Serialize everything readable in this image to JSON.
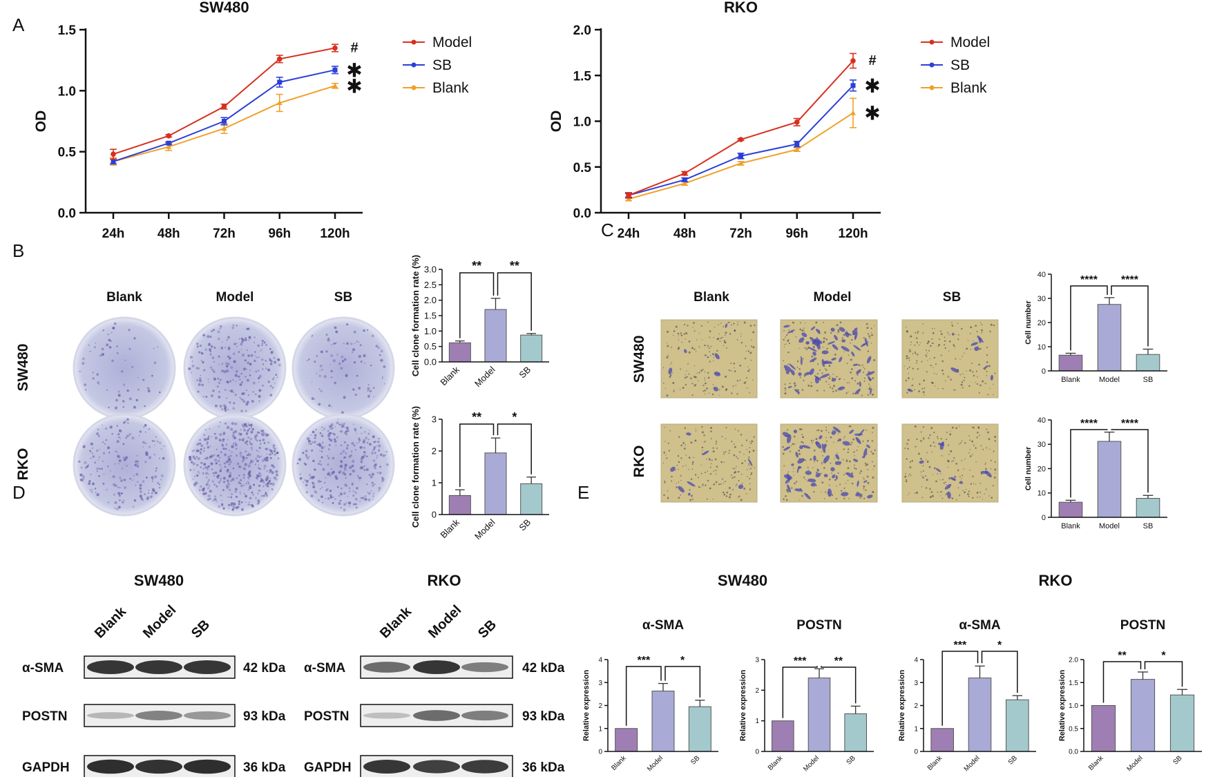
{
  "panel_letters": [
    "A",
    "B",
    "C",
    "D",
    "E"
  ],
  "colors": {
    "model": "#d7301f",
    "sb": "#2c3fd8",
    "blank": "#f0a02a",
    "bar_blank": "#9f7fb3",
    "bar_model": "#a9aad6",
    "bar_sb": "#a3c9cd",
    "plate_bg": "#c9cde2",
    "field_bg": "#cfc08c"
  },
  "groups": [
    "Blank",
    "Model",
    "SB"
  ],
  "cells": [
    "SW480",
    "RKO"
  ],
  "chart_data": [
    {
      "id": "A-SW480",
      "type": "line",
      "title": "SW480",
      "xlabel": "",
      "ylabel": "OD",
      "categories": [
        "24h",
        "48h",
        "72h",
        "96h",
        "120h"
      ],
      "ylim": [
        0,
        1.5
      ],
      "yticks": [
        0.0,
        0.5,
        1.0,
        1.5
      ],
      "ytick_labels": [
        "0.0",
        "0.5",
        "1.0",
        "1.5"
      ],
      "series": [
        {
          "name": "Model",
          "color": "#d7301f",
          "values": [
            0.48,
            0.63,
            0.87,
            1.26,
            1.35
          ],
          "err": [
            0.04,
            0.01,
            0.02,
            0.03,
            0.03
          ]
        },
        {
          "name": "SB",
          "color": "#2c3fd8",
          "values": [
            0.42,
            0.57,
            0.75,
            1.07,
            1.17
          ],
          "err": [
            0.02,
            0.01,
            0.03,
            0.04,
            0.03
          ]
        },
        {
          "name": "Blank",
          "color": "#f0a02a",
          "values": [
            0.42,
            0.54,
            0.69,
            0.9,
            1.04
          ],
          "err": [
            0.03,
            0.03,
            0.04,
            0.07,
            0.02
          ]
        }
      ],
      "annotations": [
        "#",
        "✱",
        "✱"
      ]
    },
    {
      "id": "A-RKO",
      "type": "line",
      "title": "RKO",
      "xlabel": "",
      "ylabel": "OD",
      "categories": [
        "24h",
        "48h",
        "72h",
        "96h",
        "120h"
      ],
      "ylim": [
        0,
        2.0
      ],
      "yticks": [
        0.0,
        0.5,
        1.0,
        1.5,
        2.0
      ],
      "ytick_labels": [
        "0.0",
        "0.5",
        "1.0",
        "1.5",
        "2.0"
      ],
      "series": [
        {
          "name": "Model",
          "color": "#d7301f",
          "values": [
            0.19,
            0.43,
            0.8,
            0.99,
            1.66
          ],
          "err": [
            0.03,
            0.02,
            0.01,
            0.04,
            0.08
          ]
        },
        {
          "name": "SB",
          "color": "#2c3fd8",
          "values": [
            0.19,
            0.36,
            0.62,
            0.75,
            1.39
          ],
          "err": [
            0.02,
            0.02,
            0.03,
            0.03,
            0.06
          ]
        },
        {
          "name": "Blank",
          "color": "#f0a02a",
          "values": [
            0.15,
            0.32,
            0.54,
            0.69,
            1.09
          ],
          "err": [
            0.02,
            0.02,
            0.02,
            0.02,
            0.16
          ]
        }
      ],
      "annotations": [
        "#",
        "✱",
        "✱"
      ]
    },
    {
      "id": "B-SW480",
      "type": "bar",
      "title": "",
      "xlabel": "",
      "ylabel": "Cell clone formation rate  (%)",
      "categories": [
        "Blank",
        "Model",
        "SB"
      ],
      "values": [
        0.62,
        1.7,
        0.87
      ],
      "err": [
        0.06,
        0.36,
        0.05
      ],
      "ylim": [
        0,
        3.0
      ],
      "yticks": [
        0,
        0.5,
        1.0,
        1.5,
        2.0,
        2.5,
        3.0
      ],
      "ytick_labels": [
        "0.0",
        "0.5",
        "1.0",
        "1.5",
        "2.0",
        "2.5",
        "3.0"
      ],
      "significance": [
        "**",
        "**"
      ]
    },
    {
      "id": "B-RKO",
      "type": "bar",
      "title": "",
      "xlabel": "",
      "ylabel": "Cell clone formation rate  (%)",
      "categories": [
        "Blank",
        "Model",
        "SB"
      ],
      "values": [
        0.6,
        1.94,
        0.97
      ],
      "err": [
        0.18,
        0.47,
        0.21
      ],
      "ylim": [
        0,
        3
      ],
      "yticks": [
        0,
        1,
        2,
        3
      ],
      "ytick_labels": [
        "0",
        "1",
        "2",
        "3"
      ],
      "significance": [
        "**",
        "*"
      ]
    },
    {
      "id": "C-SW480",
      "type": "bar",
      "title": "",
      "xlabel": "",
      "ylabel": "Cell number",
      "categories": [
        "Blank",
        "Model",
        "SB"
      ],
      "values": [
        6.5,
        27.5,
        6.8
      ],
      "err": [
        0.8,
        2.8,
        2.2
      ],
      "ylim": [
        0,
        40
      ],
      "yticks": [
        0,
        10,
        20,
        30,
        40
      ],
      "ytick_labels": [
        "0",
        "10",
        "20",
        "30",
        "40"
      ],
      "significance": [
        "****",
        "****"
      ]
    },
    {
      "id": "C-RKO",
      "type": "bar",
      "title": "",
      "xlabel": "",
      "ylabel": "Cell number",
      "categories": [
        "Blank",
        "Model",
        "SB"
      ],
      "values": [
        6.2,
        31.2,
        7.8
      ],
      "err": [
        0.8,
        3.8,
        1.2
      ],
      "ylim": [
        0,
        40
      ],
      "yticks": [
        0,
        10,
        20,
        30,
        40
      ],
      "ytick_labels": [
        "0",
        "10",
        "20",
        "30",
        "40"
      ],
      "significance": [
        "****",
        "****"
      ]
    },
    {
      "id": "E-SW480-aSMA",
      "type": "bar",
      "title": "α-SMA",
      "xlabel": "",
      "ylabel": "Relative expression",
      "categories": [
        "Blank",
        "Model",
        "SB"
      ],
      "values": [
        1.0,
        2.63,
        1.95
      ],
      "err": [
        0,
        0.33,
        0.28
      ],
      "ylim": [
        0,
        4
      ],
      "yticks": [
        0,
        1,
        2,
        3,
        4
      ],
      "ytick_labels": [
        "0",
        "1",
        "2",
        "3",
        "4"
      ],
      "significance": [
        "***",
        "*"
      ]
    },
    {
      "id": "E-SW480-POSTN",
      "type": "bar",
      "title": "POSTN",
      "xlabel": "",
      "ylabel": "Relative expression",
      "categories": [
        "Blank",
        "Model",
        "SB"
      ],
      "values": [
        1.0,
        2.4,
        1.23
      ],
      "err": [
        0,
        0.3,
        0.25
      ],
      "ylim": [
        0,
        3
      ],
      "yticks": [
        0,
        1,
        2,
        3
      ],
      "ytick_labels": [
        "0",
        "1",
        "2",
        "3"
      ],
      "significance": [
        "***",
        "**"
      ]
    },
    {
      "id": "E-RKO-aSMA",
      "type": "bar",
      "title": "α-SMA",
      "xlabel": "",
      "ylabel": "Relative expression",
      "categories": [
        "Blank",
        "Model",
        "SB"
      ],
      "values": [
        1.0,
        3.2,
        2.25
      ],
      "err": [
        0,
        0.52,
        0.18
      ],
      "ylim": [
        0,
        4
      ],
      "yticks": [
        0,
        1,
        2,
        3,
        4
      ],
      "ytick_labels": [
        "0",
        "1",
        "2",
        "3",
        "4"
      ],
      "significance": [
        "***",
        "*"
      ]
    },
    {
      "id": "E-RKO-POSTN",
      "type": "bar",
      "title": "POSTN",
      "xlabel": "",
      "ylabel": "Relative expression",
      "categories": [
        "Blank",
        "Model",
        "SB"
      ],
      "values": [
        1.0,
        1.57,
        1.23
      ],
      "err": [
        0,
        0.16,
        0.12
      ],
      "ylim": [
        0,
        2.0
      ],
      "yticks": [
        0,
        0.5,
        1.0,
        1.5,
        2.0
      ],
      "ytick_labels": [
        "0.0",
        "0.5",
        "1.0",
        "1.5",
        "2.0"
      ],
      "significance": [
        "**",
        "*"
      ]
    }
  ],
  "panel_E": {
    "cell_titles": [
      "SW480",
      "RKO"
    ]
  },
  "western": {
    "proteins": [
      "α-SMA",
      "POSTN",
      "GAPDH"
    ],
    "sizes": [
      "42 kDa",
      "93 kDa",
      "36 kDa"
    ],
    "blots": [
      {
        "title": "SW480",
        "intensity": [
          [
            0.85,
            0.85,
            0.85
          ],
          [
            0.12,
            0.42,
            0.3
          ],
          [
            0.9,
            0.88,
            0.9
          ]
        ]
      },
      {
        "title": "RKO",
        "intensity": [
          [
            0.55,
            0.85,
            0.45
          ],
          [
            0.08,
            0.55,
            0.45
          ],
          [
            0.85,
            0.8,
            0.82
          ]
        ]
      }
    ]
  }
}
